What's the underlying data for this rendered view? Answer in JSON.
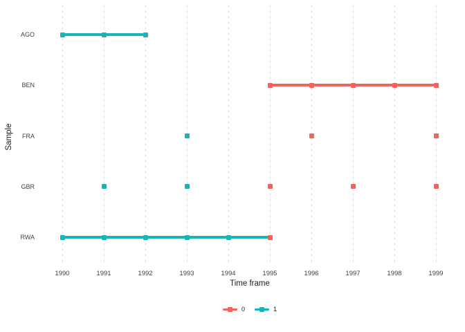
{
  "figure": {
    "background": "#ffffff"
  },
  "chart_data": {
    "type": "scatter",
    "title": "",
    "xlabel": "Time frame",
    "ylabel": "Sample",
    "x_ticks": [
      "1990",
      "1991",
      "1992",
      "1993",
      "1994",
      "1995",
      "1996",
      "1997",
      "1998",
      "1999"
    ],
    "x_range": [
      1990,
      1999
    ],
    "y_categories": [
      "AGO",
      "BEN",
      "FRA",
      "GBR",
      "RWA"
    ],
    "grid": "vertical-dashed-only",
    "gridline_color": "#dcdcdc",
    "legend_position": "bottom-center",
    "status_colors": {
      "0": "#f4625d",
      "1": "#17b5b6"
    },
    "legend": [
      {
        "label": "0",
        "status": "0"
      },
      {
        "label": "1",
        "status": "1"
      }
    ],
    "samples": [
      {
        "name": "AGO",
        "segments": [
          {
            "from": 1990,
            "to": 1992,
            "status": "1"
          }
        ],
        "points": [
          {
            "x": 1990,
            "status": "1"
          },
          {
            "x": 1991,
            "status": "1"
          },
          {
            "x": 1992,
            "status": "1"
          }
        ]
      },
      {
        "name": "BEN",
        "segments": [
          {
            "from": 1995,
            "to": 1999,
            "status": "0"
          }
        ],
        "points": [
          {
            "x": 1995,
            "status": "0"
          },
          {
            "x": 1996,
            "status": "0"
          },
          {
            "x": 1997,
            "status": "0"
          },
          {
            "x": 1998,
            "status": "0"
          },
          {
            "x": 1999,
            "status": "0"
          }
        ]
      },
      {
        "name": "FRA",
        "segments": [],
        "points": [
          {
            "x": 1993,
            "status": "1"
          },
          {
            "x": 1996,
            "status": "0"
          },
          {
            "x": 1999,
            "status": "0"
          }
        ]
      },
      {
        "name": "GBR",
        "segments": [],
        "points": [
          {
            "x": 1991,
            "status": "1"
          },
          {
            "x": 1993,
            "status": "1"
          },
          {
            "x": 1995,
            "status": "0"
          },
          {
            "x": 1997,
            "status": "0"
          },
          {
            "x": 1999,
            "status": "0"
          }
        ]
      },
      {
        "name": "RWA",
        "segments": [
          {
            "from": 1990,
            "to": 1995,
            "status": "1"
          }
        ],
        "points": [
          {
            "x": 1990,
            "status": "1"
          },
          {
            "x": 1991,
            "status": "1"
          },
          {
            "x": 1992,
            "status": "1"
          },
          {
            "x": 1993,
            "status": "1"
          },
          {
            "x": 1994,
            "status": "1"
          },
          {
            "x": 1995,
            "status": "0"
          }
        ]
      }
    ]
  }
}
